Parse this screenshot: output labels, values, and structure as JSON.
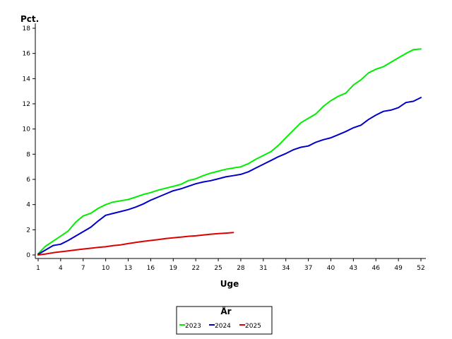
{
  "chart_data": {
    "type": "line",
    "ylabel": "Pct.",
    "xlabel": "Uge",
    "xlim": [
      1,
      52
    ],
    "ylim": [
      0,
      18
    ],
    "xticks": [
      1,
      4,
      7,
      10,
      13,
      16,
      19,
      22,
      25,
      28,
      31,
      34,
      37,
      40,
      43,
      46,
      49,
      52
    ],
    "yticks": [
      0,
      2,
      4,
      6,
      8,
      10,
      12,
      14,
      16,
      18
    ],
    "grid": false,
    "legend": {
      "title": "År",
      "position": "bottom-center"
    },
    "series": [
      {
        "name": "2023",
        "color": "#00ee00",
        "x": [
          1,
          2,
          3,
          4,
          5,
          6,
          7,
          8,
          9,
          10,
          11,
          12,
          13,
          14,
          15,
          16,
          17,
          18,
          19,
          20,
          21,
          22,
          23,
          24,
          25,
          26,
          27,
          28,
          29,
          30,
          31,
          32,
          33,
          34,
          35,
          36,
          37,
          38,
          39,
          40,
          41,
          42,
          43,
          44,
          45,
          46,
          47,
          48,
          49,
          50,
          51,
          52
        ],
        "values": [
          0.1,
          0.7,
          1.1,
          1.5,
          1.9,
          2.6,
          3.1,
          3.3,
          3.7,
          4.0,
          4.2,
          4.3,
          4.4,
          4.6,
          4.8,
          4.95,
          5.15,
          5.3,
          5.45,
          5.6,
          5.9,
          6.05,
          6.3,
          6.5,
          6.65,
          6.8,
          6.9,
          7.0,
          7.25,
          7.6,
          7.9,
          8.2,
          8.7,
          9.3,
          9.9,
          10.5,
          10.85,
          11.2,
          11.8,
          12.25,
          12.6,
          12.85,
          13.5,
          13.9,
          14.45,
          14.75,
          14.95,
          15.3,
          15.65,
          16.0,
          16.3,
          16.35
        ]
      },
      {
        "name": "2024",
        "color": "#0000cc",
        "x": [
          1,
          2,
          3,
          4,
          5,
          6,
          7,
          8,
          9,
          10,
          11,
          12,
          13,
          14,
          15,
          16,
          17,
          18,
          19,
          20,
          21,
          22,
          23,
          24,
          25,
          26,
          27,
          28,
          29,
          30,
          31,
          32,
          33,
          34,
          35,
          36,
          37,
          38,
          39,
          40,
          41,
          42,
          43,
          44,
          45,
          46,
          47,
          48,
          49,
          50,
          51,
          52
        ],
        "values": [
          0.05,
          0.4,
          0.75,
          0.85,
          1.15,
          1.5,
          1.85,
          2.2,
          2.7,
          3.15,
          3.3,
          3.45,
          3.6,
          3.8,
          4.05,
          4.35,
          4.6,
          4.85,
          5.1,
          5.25,
          5.45,
          5.65,
          5.8,
          5.9,
          6.05,
          6.2,
          6.3,
          6.4,
          6.6,
          6.9,
          7.2,
          7.5,
          7.8,
          8.05,
          8.35,
          8.55,
          8.65,
          8.95,
          9.15,
          9.3,
          9.55,
          9.8,
          10.1,
          10.3,
          10.75,
          11.1,
          11.4,
          11.5,
          11.7,
          12.1,
          12.2,
          12.5
        ]
      },
      {
        "name": "2025",
        "color": "#dd0000",
        "x": [
          1,
          2,
          3,
          4,
          5,
          6,
          7,
          8,
          9,
          10,
          11,
          12,
          13,
          14,
          15,
          16,
          17,
          18,
          19,
          20,
          21,
          22,
          23,
          24,
          25,
          26,
          27
        ],
        "values": [
          0.0,
          0.08,
          0.18,
          0.25,
          0.32,
          0.4,
          0.47,
          0.53,
          0.6,
          0.65,
          0.74,
          0.8,
          0.9,
          1.0,
          1.08,
          1.15,
          1.22,
          1.3,
          1.36,
          1.42,
          1.48,
          1.52,
          1.58,
          1.65,
          1.7,
          1.73,
          1.78
        ]
      }
    ]
  }
}
